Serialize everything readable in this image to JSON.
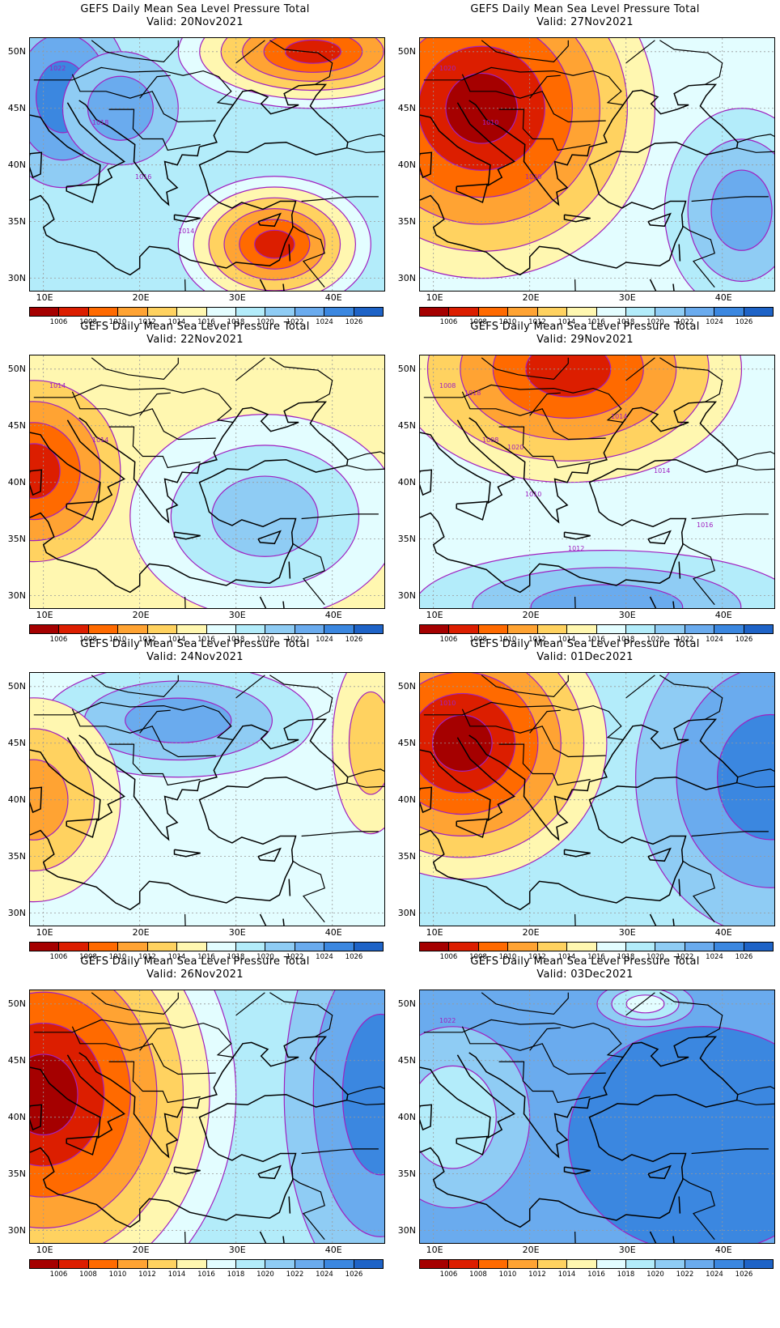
{
  "panels": [
    {
      "title": "GEFS Daily Mean Sea Level Pressure Total",
      "valid": "Valid: 20Nov2021"
    },
    {
      "title": "GEFS Daily Mean Sea Level Pressure Total",
      "valid": "Valid: 27Nov2021"
    },
    {
      "title": "GEFS Daily Mean Sea Level Pressure Total",
      "valid": "Valid: 22Nov2021"
    },
    {
      "title": "GEFS Daily Mean Sea Level Pressure Total",
      "valid": "Valid: 29Nov2021"
    },
    {
      "title": "GEFS Daily Mean Sea Level Pressure Total",
      "valid": "Valid: 24Nov2021"
    },
    {
      "title": "GEFS Daily Mean Sea Level Pressure Total",
      "valid": "Valid: 01Dec2021"
    },
    {
      "title": "GEFS Daily Mean Sea Level Pressure Total",
      "valid": "Valid: 26Nov2021"
    },
    {
      "title": "GEFS Daily Mean Sea Level Pressure Total",
      "valid": "Valid: 03Dec2021"
    }
  ],
  "axes": {
    "lat_labels": [
      "50N",
      "45N",
      "40N",
      "35N",
      "30N"
    ],
    "lon_labels": [
      "10E",
      "20E",
      "30E",
      "40E"
    ]
  },
  "colorbar": {
    "labels": [
      "1006",
      "1008",
      "1010",
      "1012",
      "1014",
      "1016",
      "1018",
      "1020",
      "1022",
      "1024",
      "1026"
    ],
    "colors": [
      "#a50000",
      "#dc1e00",
      "#ff6a00",
      "#ffa333",
      "#ffd260",
      "#fff7b0",
      "#e3fdff",
      "#b3ecfa",
      "#8fccf4",
      "#6aabee",
      "#3b87e0",
      "#1e63c7"
    ]
  },
  "contour_line_color": "#a020c0",
  "panel_contour_labels": [
    [
      "1022",
      "1018",
      "1016",
      "1014"
    ],
    [
      "1020",
      "1010",
      "1020"
    ],
    [
      "1014",
      "1014"
    ],
    [
      "1008",
      "1008",
      "1010",
      "1012",
      "1014",
      "1014",
      "1016",
      "1018",
      "1020"
    ],
    [],
    [
      "1010"
    ],
    [],
    [
      "1022"
    ]
  ]
}
